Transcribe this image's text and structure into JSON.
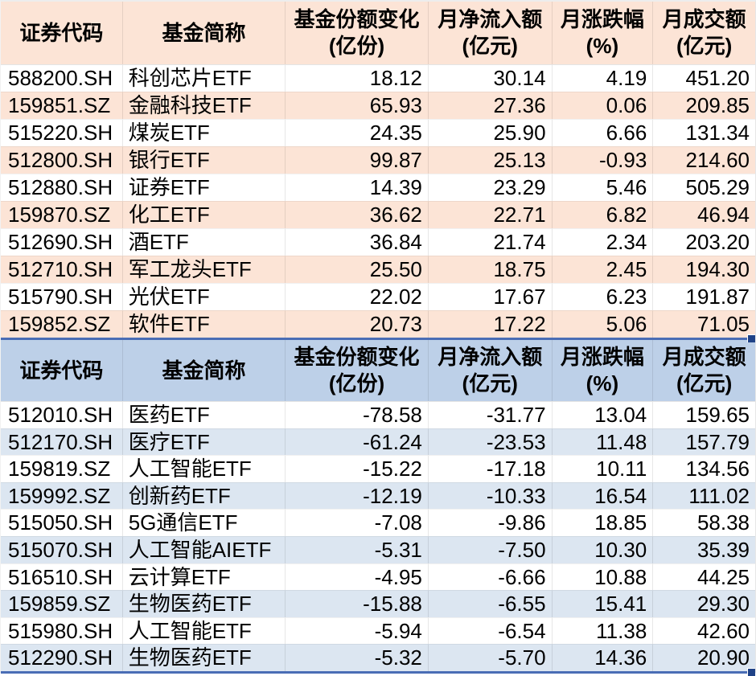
{
  "tables": [
    {
      "title_hint": "monthly-net-inflow-top10",
      "theme": {
        "header_bg": "#fce4d6",
        "stripe_bg": "#fce4d6",
        "row_bg": "#ffffff",
        "selection_border": "#4a6db5",
        "fill_handle": "#1f4287"
      },
      "columns": [
        {
          "label": "证券代码",
          "unit": ""
        },
        {
          "label": "基金简称",
          "unit": ""
        },
        {
          "label": "基金份额变化",
          "unit": "(亿份)"
        },
        {
          "label": "月净流入额",
          "unit": "(亿元)"
        },
        {
          "label": "月涨跌幅",
          "unit": "(%)"
        },
        {
          "label": "月成交额",
          "unit": "(亿元)"
        }
      ],
      "rows": [
        [
          "588200.SH",
          "科创芯片ETF",
          "18.12",
          "30.14",
          "4.19",
          "451.20"
        ],
        [
          "159851.SZ",
          "金融科技ETF",
          "65.93",
          "27.36",
          "0.06",
          "209.85"
        ],
        [
          "515220.SH",
          "煤炭ETF",
          "24.35",
          "25.90",
          "6.66",
          "131.34"
        ],
        [
          "512800.SH",
          "银行ETF",
          "99.87",
          "25.13",
          "-0.93",
          "214.60"
        ],
        [
          "512880.SH",
          "证券ETF",
          "14.39",
          "23.29",
          "5.46",
          "505.29"
        ],
        [
          "159870.SZ",
          "化工ETF",
          "36.62",
          "22.71",
          "6.82",
          "46.94"
        ],
        [
          "512690.SH",
          "酒ETF",
          "36.84",
          "21.74",
          "2.34",
          "203.20"
        ],
        [
          "512710.SH",
          "军工龙头ETF",
          "25.50",
          "18.75",
          "2.45",
          "194.30"
        ],
        [
          "515790.SH",
          "光伏ETF",
          "22.02",
          "17.67",
          "6.23",
          "191.87"
        ],
        [
          "159852.SZ",
          "软件ETF",
          "20.73",
          "17.22",
          "5.06",
          "71.05"
        ]
      ]
    },
    {
      "title_hint": "monthly-net-outflow-top10",
      "theme": {
        "header_bg": "#bdd0e8",
        "stripe_bg": "#dce6f1",
        "row_bg": "#ffffff",
        "selection_border": "#4a6db5",
        "fill_handle": "#1f4287"
      },
      "columns": [
        {
          "label": "证券代码",
          "unit": ""
        },
        {
          "label": "基金简称",
          "unit": ""
        },
        {
          "label": "基金份额变化",
          "unit": "(亿份)"
        },
        {
          "label": "月净流入额",
          "unit": "(亿元)"
        },
        {
          "label": "月涨跌幅",
          "unit": "(%)"
        },
        {
          "label": "月成交额",
          "unit": "(亿元)"
        }
      ],
      "rows": [
        [
          "512010.SH",
          "医药ETF",
          "-78.58",
          "-31.77",
          "13.04",
          "159.65"
        ],
        [
          "512170.SH",
          "医疗ETF",
          "-61.24",
          "-23.53",
          "11.48",
          "157.79"
        ],
        [
          "159819.SZ",
          "人工智能ETF",
          "-15.22",
          "-17.18",
          "10.11",
          "134.56"
        ],
        [
          "159992.SZ",
          "创新药ETF",
          "-12.19",
          "-10.33",
          "16.54",
          "111.02"
        ],
        [
          "515050.SH",
          "5G通信ETF",
          "-7.08",
          "-9.86",
          "18.85",
          "58.38"
        ],
        [
          "515070.SH",
          "人工智能AIETF",
          "-5.31",
          "-7.50",
          "10.30",
          "35.39"
        ],
        [
          "516510.SH",
          "云计算ETF",
          "-4.95",
          "-6.66",
          "10.88",
          "44.25"
        ],
        [
          "159859.SZ",
          "生物医药ETF",
          "-15.88",
          "-6.55",
          "15.41",
          "29.30"
        ],
        [
          "515980.SH",
          "人工智能ETF",
          "-5.94",
          "-6.54",
          "11.38",
          "42.60"
        ],
        [
          "512290.SH",
          "生物医药ETF",
          "-5.32",
          "-5.70",
          "14.36",
          "20.90"
        ]
      ]
    }
  ]
}
